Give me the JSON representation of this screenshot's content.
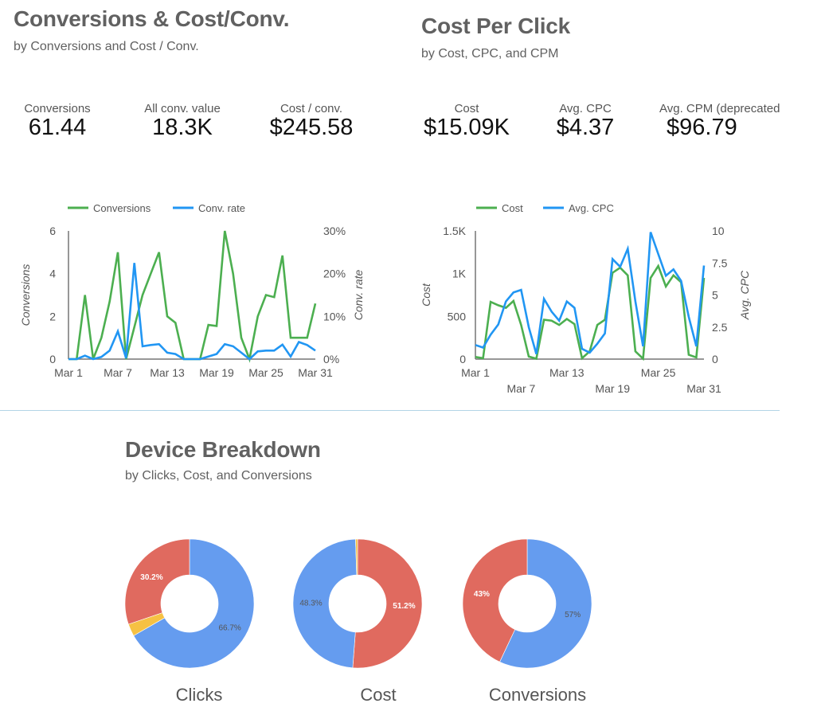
{
  "sections": {
    "conversions": {
      "title": "Conversions & Cost/Conv.",
      "subtitle": "by Conversions  and Cost / Conv.",
      "kpis": [
        {
          "label": "Conversions",
          "value": "61.44"
        },
        {
          "label": "All conv. value",
          "value": "18.3K"
        },
        {
          "label": "Cost / conv.",
          "value": "$245.58"
        }
      ]
    },
    "cpc": {
      "title": "Cost Per Click",
      "subtitle": "by Cost, CPC, and CPM",
      "kpis": [
        {
          "label": "Cost",
          "value": "$15.09K"
        },
        {
          "label": "Avg. CPC",
          "value": "$4.37"
        },
        {
          "label": "Avg. CPM (deprecated",
          "value": "$96.79"
        }
      ]
    },
    "device": {
      "title": "Device Breakdown",
      "subtitle": "by Clicks, Cost, and Conversions"
    }
  },
  "colors": {
    "green": "#4caf50",
    "blue": "#2196f3",
    "pie_blue": "#659cef",
    "pie_red": "#e06a5f",
    "pie_yellow": "#f6c143",
    "axis": "#757575"
  },
  "chart_data": [
    {
      "type": "line",
      "title": "Conversions & Conv. rate",
      "x": [
        "Mar 1",
        "Mar 2",
        "Mar 3",
        "Mar 4",
        "Mar 5",
        "Mar 6",
        "Mar 7",
        "Mar 8",
        "Mar 9",
        "Mar 10",
        "Mar 11",
        "Mar 12",
        "Mar 13",
        "Mar 14",
        "Mar 15",
        "Mar 16",
        "Mar 17",
        "Mar 18",
        "Mar 19",
        "Mar 20",
        "Mar 21",
        "Mar 22",
        "Mar 23",
        "Mar 24",
        "Mar 25",
        "Mar 26",
        "Mar 27",
        "Mar 28",
        "Mar 29",
        "Mar 30",
        "Mar 31"
      ],
      "xticks": [
        "Mar 1",
        "Mar 7",
        "Mar 13",
        "Mar 19",
        "Mar 25",
        "Mar 31"
      ],
      "series": [
        {
          "name": "Conversions",
          "axis": "left",
          "color": "#4caf50",
          "values": [
            0,
            0,
            3,
            0,
            1,
            2.7,
            5,
            0,
            1.5,
            3,
            4,
            5,
            2,
            1.7,
            0,
            0,
            0,
            1.6,
            1.55,
            6,
            4,
            1,
            0,
            2,
            3,
            2.9,
            4.85,
            1,
            1,
            1,
            2.6
          ]
        },
        {
          "name": "Conv. rate",
          "axis": "right",
          "color": "#2196f3",
          "values": [
            0,
            0,
            0.8,
            0,
            0.5,
            2,
            6.5,
            0.2,
            22.5,
            3,
            3.3,
            3.5,
            1.5,
            1.2,
            0,
            0,
            0,
            0.6,
            1.2,
            3.5,
            3,
            1.5,
            0,
            1.8,
            2,
            2,
            3.4,
            0.6,
            4,
            3.3,
            2
          ]
        }
      ],
      "ylabel": "Conversions",
      "ylabel_right": "Conv. rate",
      "ylim": [
        0,
        6
      ],
      "yticks": [
        "0",
        "2",
        "4",
        "6"
      ],
      "ylim_right": [
        0,
        30
      ],
      "yticks_right": [
        "0%",
        "10%",
        "20%",
        "30%"
      ],
      "legend": "top",
      "grid": false
    },
    {
      "type": "line",
      "title": "Cost & Avg. CPC",
      "x": [
        "Mar 1",
        "Mar 2",
        "Mar 3",
        "Mar 4",
        "Mar 5",
        "Mar 6",
        "Mar 7",
        "Mar 8",
        "Mar 9",
        "Mar 10",
        "Mar 11",
        "Mar 12",
        "Mar 13",
        "Mar 14",
        "Mar 15",
        "Mar 16",
        "Mar 17",
        "Mar 18",
        "Mar 19",
        "Mar 20",
        "Mar 21",
        "Mar 22",
        "Mar 23",
        "Mar 24",
        "Mar 25",
        "Mar 26",
        "Mar 27",
        "Mar 28",
        "Mar 29",
        "Mar 30",
        "Mar 31"
      ],
      "xticks_top": [
        "Mar 1",
        "Mar 13",
        "Mar 25"
      ],
      "xticks_bottom": [
        "Mar 7",
        "Mar 19",
        "Mar 31"
      ],
      "series": [
        {
          "name": "Cost",
          "axis": "left",
          "color": "#4caf50",
          "values": [
            25,
            10,
            670,
            630,
            600,
            680,
            400,
            30,
            5,
            460,
            450,
            400,
            470,
            410,
            10,
            90,
            400,
            460,
            1010,
            1070,
            980,
            90,
            5,
            950,
            1090,
            850,
            980,
            900,
            50,
            20,
            950
          ]
        },
        {
          "name": "Avg. CPC",
          "axis": "right",
          "color": "#2196f3",
          "values": [
            1.1,
            0.9,
            1.9,
            2.7,
            4.5,
            5.2,
            5.4,
            2.5,
            0.4,
            4.7,
            3.7,
            3.0,
            4.5,
            4.0,
            0.8,
            0.5,
            1.2,
            2.0,
            7.8,
            7.2,
            8.6,
            4.5,
            1.0,
            9.9,
            8.2,
            6.5,
            7.0,
            6.1,
            3.3,
            1.0,
            7.3
          ]
        }
      ],
      "ylabel": "Cost",
      "ylabel_right": "Avg. CPC",
      "ylim": [
        0,
        1500
      ],
      "yticks": [
        "0",
        "500",
        "1K",
        "1.5K"
      ],
      "ylim_right": [
        0,
        10
      ],
      "yticks_right": [
        "0",
        "2.5",
        "5",
        "7.5",
        "10"
      ],
      "legend": "top",
      "grid": false
    },
    {
      "type": "pie",
      "title": "Clicks",
      "slices": [
        {
          "label": "Blue segment",
          "value": 66.7,
          "color": "#659cef",
          "text": "66.7%"
        },
        {
          "label": "Yellow segment",
          "value": 3.1,
          "color": "#f6c143",
          "text": ""
        },
        {
          "label": "Red segment",
          "value": 30.2,
          "color": "#e06a5f",
          "text": "30.2%"
        }
      ]
    },
    {
      "type": "pie",
      "title": "Cost",
      "slices": [
        {
          "label": "Red segment",
          "value": 51.2,
          "color": "#e06a5f",
          "text": "51.2%"
        },
        {
          "label": "Blue segment",
          "value": 48.3,
          "color": "#659cef",
          "text": "48.3%"
        },
        {
          "label": "Yellow segment",
          "value": 0.5,
          "color": "#f6c143",
          "text": ""
        }
      ]
    },
    {
      "type": "pie",
      "title": "Conversions",
      "slices": [
        {
          "label": "Blue segment",
          "value": 57,
          "color": "#659cef",
          "text": "57%"
        },
        {
          "label": "Red segment",
          "value": 43,
          "color": "#e06a5f",
          "text": "43%"
        }
      ]
    }
  ]
}
